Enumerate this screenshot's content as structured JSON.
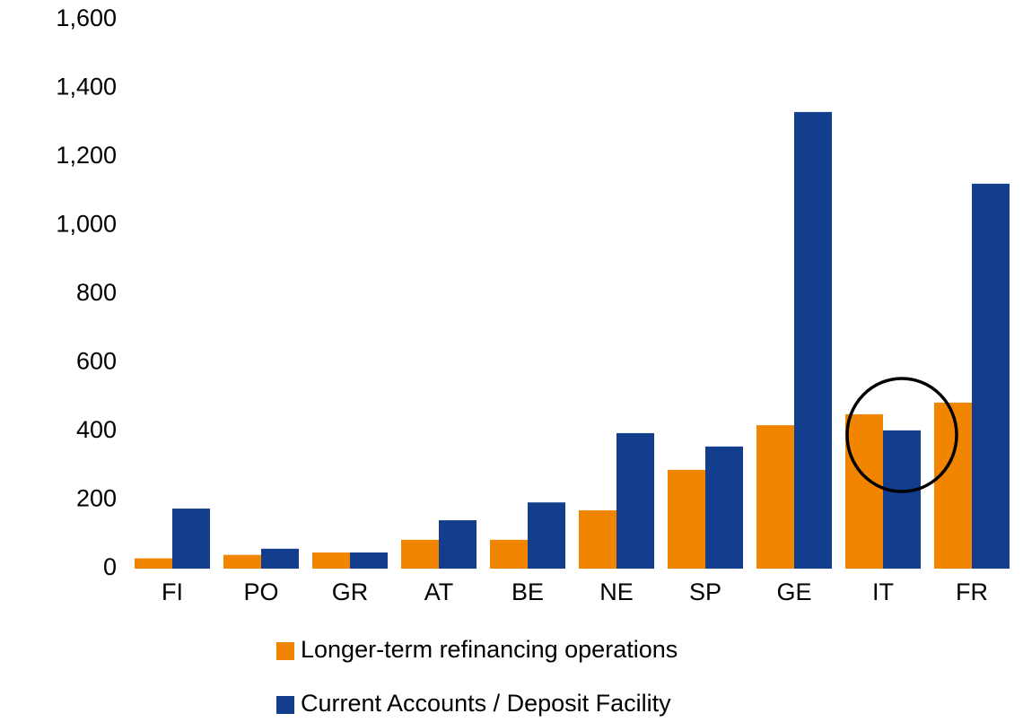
{
  "chart_data": {
    "type": "bar",
    "categories": [
      "FI",
      "PO",
      "GR",
      "AT",
      "BE",
      "NE",
      "SP",
      "GE",
      "IT",
      "FR"
    ],
    "series": [
      {
        "name": "Longer-term refinancing operations",
        "color": "#f28500",
        "values": [
          30,
          40,
          47,
          84,
          84,
          170,
          288,
          418,
          450,
          484
        ]
      },
      {
        "name": "Current Accounts / Deposit Facility",
        "color": "#133d8d",
        "values": [
          175,
          58,
          47,
          141,
          193,
          395,
          356,
          1331,
          403,
          1122
        ]
      }
    ],
    "ylim": [
      0,
      1600
    ],
    "yticks": [
      0,
      200,
      400,
      600,
      800,
      {
        "value": 1000,
        "label": "1,000"
      },
      {
        "value": 1200,
        "label": "1,200"
      },
      {
        "value": 1400,
        "label": "1,400"
      },
      {
        "value": 1600,
        "label": "1,600"
      }
    ],
    "grid": false
  }
}
